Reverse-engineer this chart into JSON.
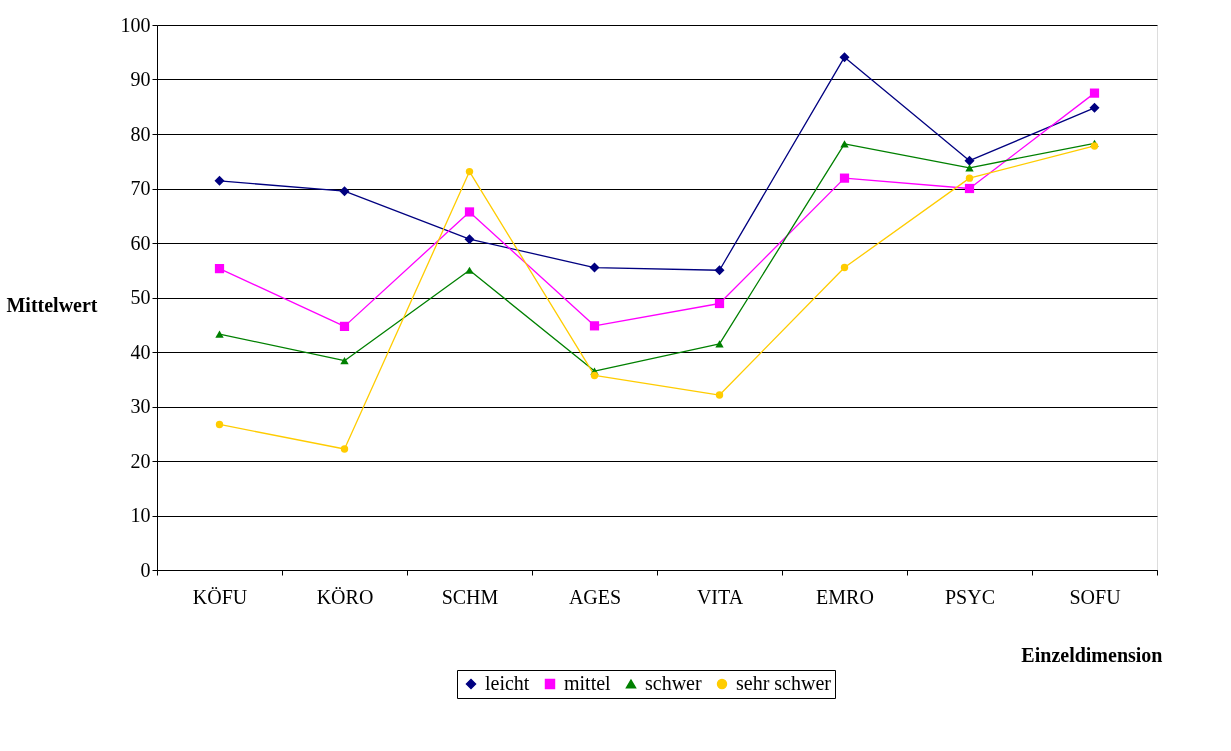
{
  "chart_data": {
    "type": "line",
    "xlabel": "Einzeldimension",
    "ylabel": "Mittelwert",
    "categories": [
      "KÖFU",
      "KÖRO",
      "SCHM",
      "AGES",
      "VITA",
      "EMRO",
      "PSYC",
      "SOFU"
    ],
    "series": [
      {
        "name": "leicht",
        "color": "#000080",
        "marker": "diamond",
        "values": [
          71.4,
          69.5,
          60.7,
          55.5,
          55.0,
          94.1,
          75.1,
          84.8
        ]
      },
      {
        "name": "mittel",
        "color": "#ff00ff",
        "marker": "square",
        "values": [
          55.3,
          44.7,
          65.7,
          44.8,
          48.9,
          71.9,
          70.0,
          87.5
        ]
      },
      {
        "name": "schwer",
        "color": "#008000",
        "marker": "triangle",
        "values": [
          43.3,
          38.4,
          55.0,
          36.5,
          41.5,
          78.2,
          73.8,
          78.3
        ]
      },
      {
        "name": "sehr schwer",
        "color": "#ffcc00",
        "marker": "circle",
        "values": [
          26.7,
          22.2,
          73.1,
          35.7,
          32.1,
          55.5,
          71.9,
          77.8
        ]
      }
    ],
    "ylim": [
      0,
      100
    ],
    "yticks": [
      0,
      10,
      20,
      30,
      40,
      50,
      60,
      70,
      80,
      90,
      100
    ],
    "grid": "y",
    "legend": "bottom",
    "line_style": "solid"
  }
}
